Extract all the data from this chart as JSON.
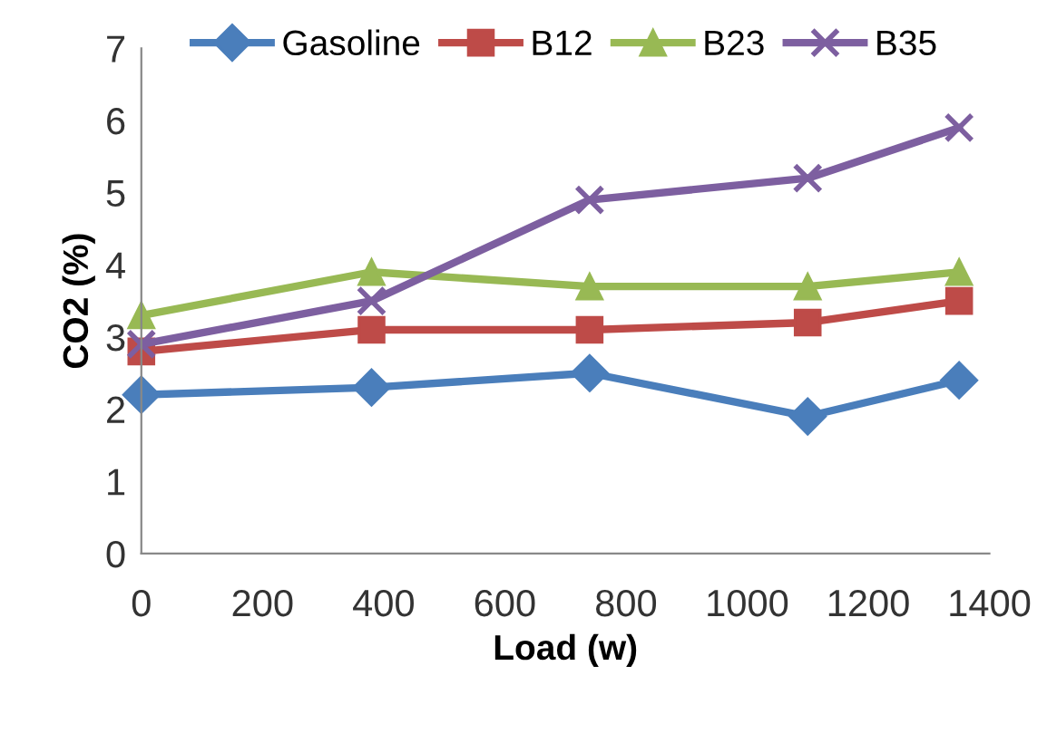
{
  "chart_data": {
    "type": "line",
    "xlabel": "Load (w)",
    "ylabel": "CO2 (%)",
    "x": [
      0,
      380,
      740,
      1100,
      1350
    ],
    "series": [
      {
        "name": "Gasoline",
        "color": "#4a7ebb",
        "marker": "diamond",
        "values": [
          2.2,
          2.3,
          2.5,
          1.9,
          2.4
        ]
      },
      {
        "name": "B12",
        "color": "#be4b48",
        "marker": "square",
        "values": [
          2.8,
          3.1,
          3.1,
          3.2,
          3.5
        ]
      },
      {
        "name": "B23",
        "color": "#98b954",
        "marker": "triangle",
        "values": [
          3.3,
          3.9,
          3.7,
          3.7,
          3.9
        ]
      },
      {
        "name": "B35",
        "color": "#7d5fa0",
        "marker": "cross",
        "values": [
          2.9,
          3.5,
          4.9,
          5.2,
          5.9
        ]
      }
    ],
    "xlim": [
      0,
      1400
    ],
    "xticks": [
      0,
      200,
      400,
      600,
      800,
      1000,
      1200,
      1400
    ],
    "ylim": [
      0,
      7
    ],
    "yticks": [
      0,
      1,
      2,
      3,
      4,
      5,
      6,
      7
    ],
    "grid": false,
    "legend": "top",
    "line_style": "solid"
  }
}
